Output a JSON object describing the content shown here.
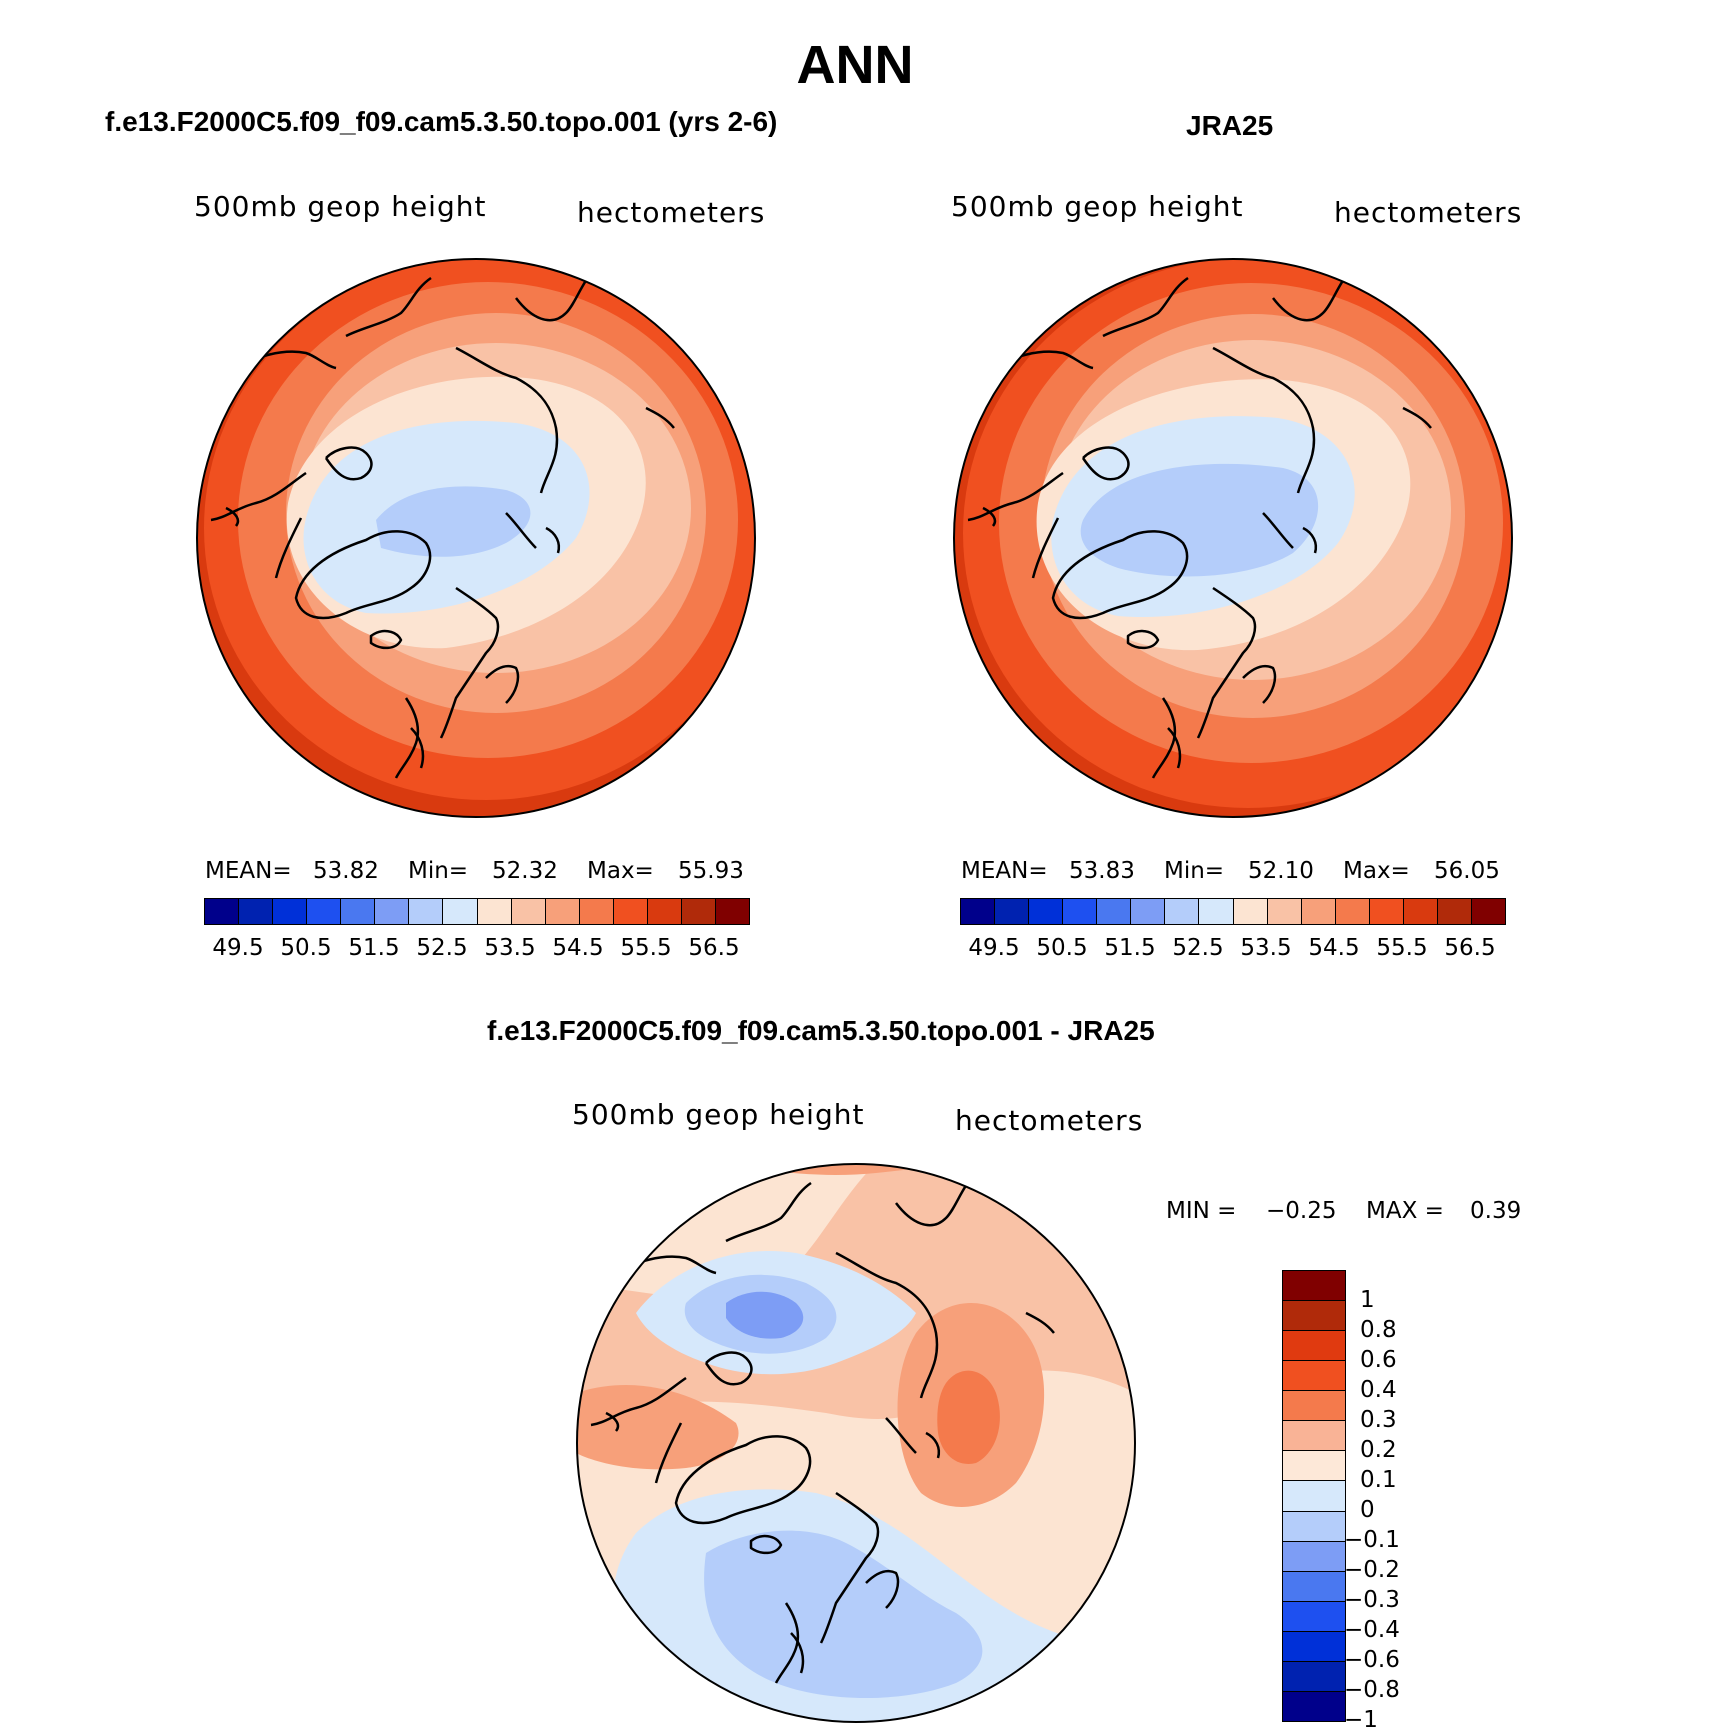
{
  "title": "ANN",
  "panels": {
    "model": {
      "title": "f.e13.F2000C5.f09_f09.cam5.3.50.topo.001 (yrs 2-6)",
      "variable": "500mb  geop  height",
      "units": "hectometers",
      "stats": {
        "mean_label": "MEAN=",
        "mean": "53.82",
        "min_label": "Min=",
        "min": "52.32",
        "max_label": "Max=",
        "max": "55.93"
      }
    },
    "obs": {
      "title": "JRA25",
      "variable": "500mb  geop  height",
      "units": "hectometers",
      "stats": {
        "mean_label": "MEAN=",
        "mean": "53.83",
        "min_label": "Min=",
        "min": "52.10",
        "max_label": "Max=",
        "max": "56.05"
      }
    },
    "diff": {
      "title": "f.e13.F2000C5.f09_f09.cam5.3.50.topo.001 - JRA25",
      "variable": "500mb  geop  height",
      "units": "hectometers",
      "stats": {
        "min_label": "MIN =",
        "min": "−0.25",
        "max_label": "MAX =",
        "max": "0.39"
      }
    }
  },
  "colorbar_main": {
    "colors": [
      "#00008b",
      "#0022b0",
      "#0030d8",
      "#1e50f0",
      "#4a78f0",
      "#7d9df5",
      "#b4cdfa",
      "#d6e8fb",
      "#fce4d2",
      "#f9c2a6",
      "#f7a07a",
      "#f47a4c",
      "#f05020",
      "#d93a0f",
      "#b02a0a",
      "#800000"
    ],
    "ticks": [
      "49.5",
      "50.5",
      "51.5",
      "52.5",
      "53.5",
      "54.5",
      "55.5",
      "56.5"
    ]
  },
  "colorbar_diff": {
    "colors": [
      "#800000",
      "#b02a0a",
      "#e03a10",
      "#f05020",
      "#f47a4c",
      "#f9b396",
      "#fde8d8",
      "#d6e8fb",
      "#b4cdfa",
      "#7d9df5",
      "#4a78f0",
      "#1e50f0",
      "#0030d8",
      "#0022b0",
      "#00008b"
    ],
    "ticks": [
      "1",
      "0.8",
      "0.6",
      "0.4",
      "0.3",
      "0.2",
      "0.1",
      "0",
      "−0.1",
      "−0.2",
      "−0.3",
      "−0.4",
      "−0.6",
      "−0.8",
      "−1"
    ]
  }
}
